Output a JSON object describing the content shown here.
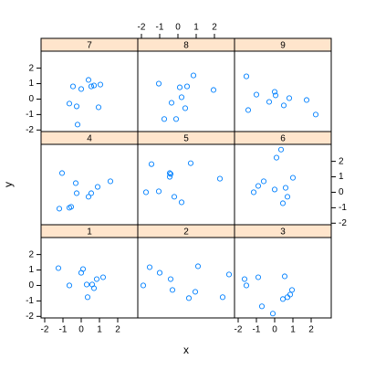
{
  "chart_data": {
    "type": "scatter",
    "xlabel": "x",
    "ylabel": "y",
    "color": "#0080ff",
    "xlim": [
      -2.2,
      3.1
    ],
    "ylim": [
      -2.1,
      3.1
    ],
    "xticks": [
      -2,
      -1,
      0,
      1,
      2
    ],
    "yticks": [
      -2,
      -1,
      0,
      1,
      2
    ],
    "panels": [
      {
        "title": "1",
        "x": [
          -1.25,
          -0.65,
          0,
          0.1,
          0.3,
          0.35,
          0.6,
          0.7,
          0.85,
          1.2
        ],
        "y": [
          1.12,
          0,
          0.82,
          1.06,
          0.06,
          -0.76,
          0.06,
          -0.18,
          0.41,
          0.53
        ]
      },
      {
        "title": "2",
        "x": [
          -1.9,
          -1.55,
          -1.0,
          -0.4,
          -0.3,
          0.6,
          0.95,
          1.1,
          2.45,
          2.8
        ],
        "y": [
          0,
          1.18,
          0.82,
          0.41,
          -0.29,
          -0.82,
          -0.41,
          1.24,
          -0.76,
          0.71
        ]
      },
      {
        "title": "3",
        "x": [
          -1.65,
          -1.55,
          -0.9,
          -0.7,
          -0.1,
          0.45,
          0.55,
          0.7,
          0.85,
          0.95
        ],
        "y": [
          0.41,
          0,
          0.53,
          -1.35,
          -1.82,
          -0.88,
          0.59,
          -0.76,
          -0.59,
          -0.29
        ]
      },
      {
        "title": "4",
        "x": [
          -1.05,
          -1.2,
          -0.65,
          -0.55,
          -0.3,
          -0.25,
          0.4,
          0.55,
          0.9,
          1.6
        ],
        "y": [
          1.24,
          -1.06,
          -1.0,
          -0.94,
          0.59,
          -0.06,
          -0.29,
          -0.06,
          0.35,
          0.71
        ]
      },
      {
        "title": "5",
        "x": [
          -1.75,
          -1.45,
          -1.05,
          -0.45,
          -0.45,
          -0.4,
          -0.2,
          0.2,
          0.7,
          2.3
        ],
        "y": [
          0,
          1.82,
          0.06,
          1.24,
          1.0,
          1.18,
          -0.29,
          -0.65,
          1.88,
          0.88
        ]
      },
      {
        "title": "6",
        "x": [
          -1.15,
          -0.9,
          -0.6,
          0,
          0.1,
          0.35,
          0.45,
          0.6,
          0.7,
          1.0
        ],
        "y": [
          0,
          0.41,
          0.71,
          0.18,
          2.24,
          2.76,
          -0.71,
          0.29,
          -0.29,
          0.94
        ]
      },
      {
        "title": "7",
        "x": [
          -0.65,
          -0.45,
          -0.25,
          -0.2,
          0,
          0.4,
          0.55,
          0.7,
          0.95,
          1.05
        ],
        "y": [
          -0.29,
          0.82,
          -0.47,
          -1.65,
          0.65,
          1.24,
          0.82,
          0.88,
          -0.53,
          0.94
        ]
      },
      {
        "title": "8",
        "x": [
          -1.05,
          -0.75,
          -0.35,
          -0.1,
          0.1,
          0.4,
          0.5,
          0.85,
          1.95,
          0.2
        ],
        "y": [
          1.0,
          -1.29,
          -0.24,
          -1.29,
          0.76,
          -0.59,
          0.82,
          1.53,
          0.59,
          0.12
        ]
      },
      {
        "title": "9",
        "x": [
          -1.55,
          -1.45,
          -1.0,
          -0.3,
          0,
          0.05,
          0.5,
          0.8,
          1.75,
          2.25
        ],
        "y": [
          1.47,
          -0.71,
          0.29,
          -0.18,
          0.47,
          0.24,
          -0.41,
          0.06,
          -0.06,
          -1.0
        ]
      }
    ]
  }
}
